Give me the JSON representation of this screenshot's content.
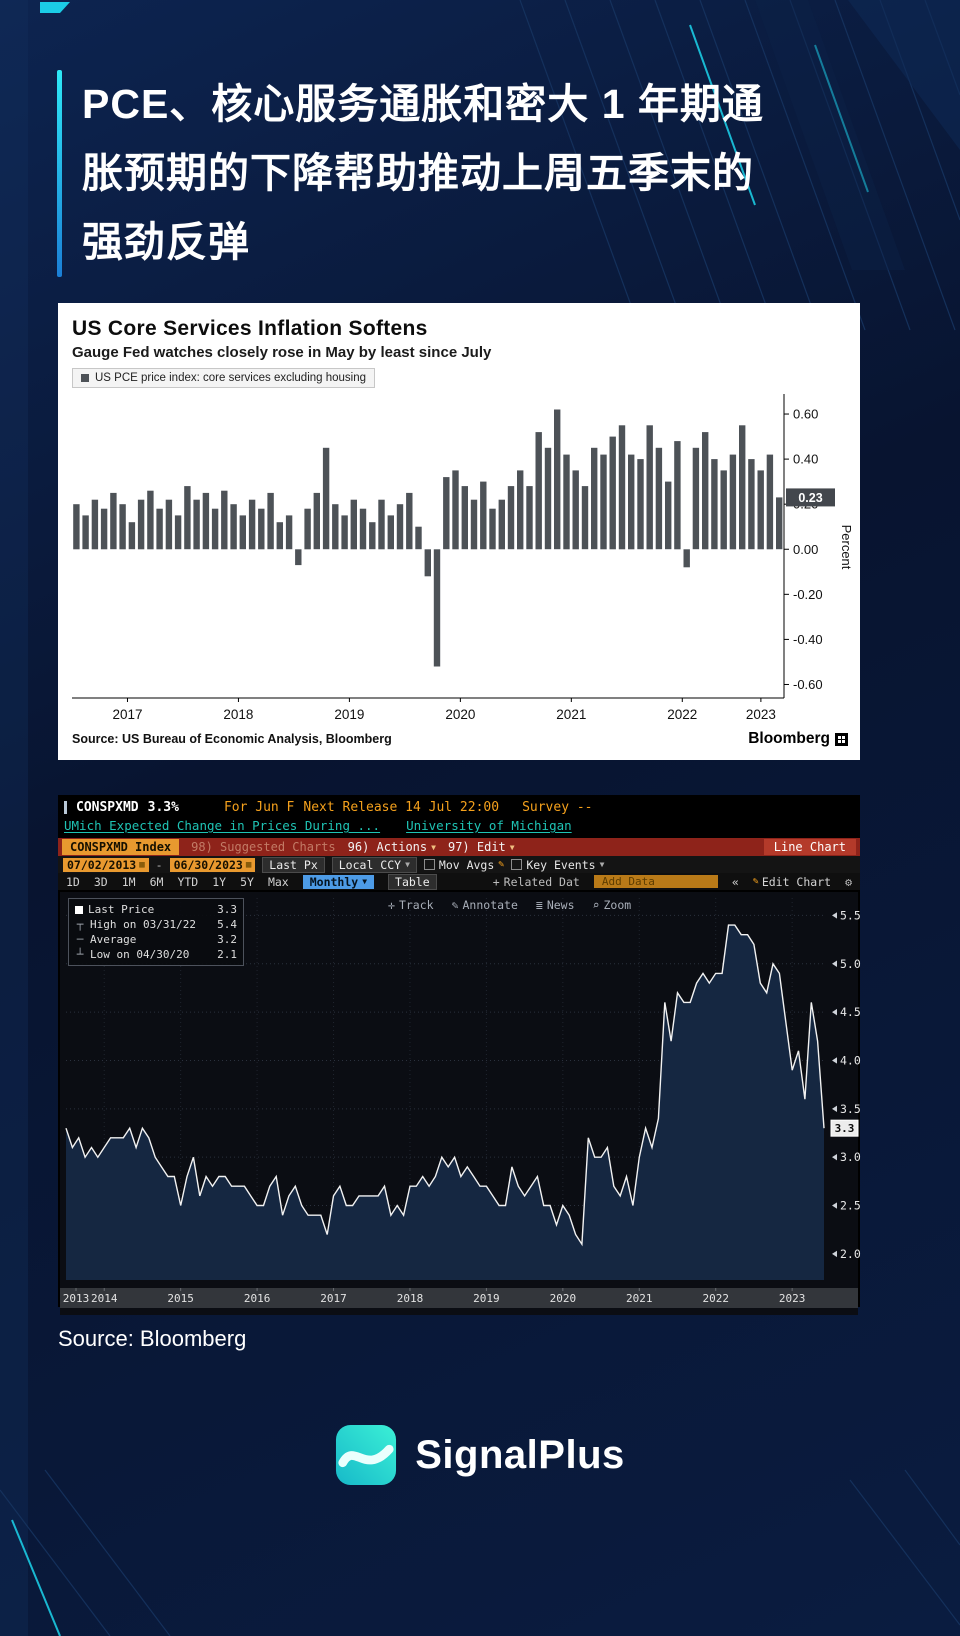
{
  "page": {
    "title_lines": [
      "PCE、核心服务通胀和密大 1 年期通",
      "胀预期的下降帮助推动上周五季末的",
      "强劲反弹"
    ],
    "source": "Source: Bloomberg",
    "brand_name": "SignalPlus"
  },
  "chart1": {
    "title": "US Core Services Inflation Softens",
    "subtitle": "Gauge Fed watches closely rose in May by least since July",
    "legend_label": "US PCE price index: core services excluding housing",
    "ylabel": "Percent",
    "source": "Source: US Bureau of Economic Analysis, Bloomberg",
    "brand": "Bloomberg"
  },
  "terminal": {
    "line1": {
      "ticker": "CONSPXMD",
      "value": "3.3%",
      "for": "For Jun F",
      "next_release": "Next Release 14 Jul 22:00",
      "survey": "Survey --"
    },
    "line2": {
      "desc": "UMich Expected Change in Prices During ...",
      "org": "University of Michigan"
    },
    "menubar": {
      "security": "CONSPXMD Index",
      "suggested": "98) Suggested Charts",
      "actions": "96) Actions",
      "edit": "97) Edit",
      "chart_type": "Line Chart"
    },
    "controls": {
      "date_from": "07/02/2013",
      "date_to": "06/30/2023",
      "last_px": "Last Px",
      "ccy": "Local CCY",
      "mov_avgs": "Mov Avgs",
      "key_events": "Key Events"
    },
    "ranges": [
      "1D",
      "3D",
      "1M",
      "6M",
      "YTD",
      "1Y",
      "5Y",
      "Max"
    ],
    "period": "Monthly",
    "table_label": "Table",
    "related": "Related Dat",
    "add_data": "Add Data",
    "edit_chart": "Edit Chart",
    "tools": {
      "track": "Track",
      "annotate": "Annotate",
      "news": "News",
      "zoom": "Zoom"
    },
    "legend": {
      "last_label": "Last Price",
      "last_val": "3.3",
      "high_label": "High on 03/31/22",
      "high_val": "5.4",
      "avg_label": "Average",
      "avg_val": "3.2",
      "low_label": "Low on 04/30/20",
      "low_val": "2.1"
    }
  },
  "icons": {
    "calendar": "▦",
    "dropdown": "▼",
    "pencil": "✎",
    "gear": "⚙",
    "collapse": "«",
    "plus": "+",
    "track": "✛",
    "annotate": "✎",
    "news": "≣",
    "zoom": "⌕",
    "separator": "-",
    "marker_high": "┬",
    "marker_avg": "─",
    "marker_low": "┴"
  },
  "chart_data": [
    {
      "type": "bar",
      "title": "US Core Services Inflation Softens",
      "subtitle": "Gauge Fed watches closely rose in May by least since July",
      "series_name": "US PCE price index: core services excluding housing",
      "start": "2017-01",
      "freq": "monthly",
      "ylabel": "Percent",
      "ylim": [
        -0.66,
        0.68
      ],
      "yticks": [
        0.6,
        0.4,
        0.2,
        0.0,
        -0.2,
        -0.4,
        -0.6
      ],
      "year_labels": [
        "2017",
        "2018",
        "2019",
        "2020",
        "2021",
        "2022",
        "2023"
      ],
      "bar_color": "#4d5257",
      "last_value": 0.23,
      "values": [
        0.2,
        0.15,
        0.22,
        0.18,
        0.25,
        0.2,
        0.12,
        0.22,
        0.26,
        0.18,
        0.22,
        0.15,
        0.28,
        0.22,
        0.25,
        0.18,
        0.26,
        0.2,
        0.15,
        0.22,
        0.18,
        0.25,
        0.12,
        0.15,
        -0.07,
        0.18,
        0.25,
        0.45,
        0.2,
        0.15,
        0.22,
        0.18,
        0.12,
        0.22,
        0.15,
        0.2,
        0.25,
        0.1,
        -0.12,
        -0.52,
        0.32,
        0.35,
        0.28,
        0.22,
        0.3,
        0.18,
        0.22,
        0.28,
        0.35,
        0.28,
        0.52,
        0.45,
        0.62,
        0.42,
        0.35,
        0.28,
        0.45,
        0.42,
        0.5,
        0.55,
        0.42,
        0.4,
        0.55,
        0.45,
        0.3,
        0.48,
        -0.08,
        0.45,
        0.52,
        0.4,
        0.35,
        0.42,
        0.55,
        0.4,
        0.35,
        0.42,
        0.23
      ]
    },
    {
      "type": "line",
      "title": "UMich Expected Change in Prices During ... (CONSPXMD Index)",
      "start": "2013-07",
      "freq": "monthly",
      "ylim": [
        1.73,
        5.68
      ],
      "yticks": [
        5.5,
        5.0,
        4.5,
        4.0,
        3.5,
        3.0,
        2.5,
        2.0
      ],
      "year_labels": [
        "2013",
        "2014",
        "2015",
        "2016",
        "2017",
        "2018",
        "2019",
        "2020",
        "2021",
        "2022",
        "2023"
      ],
      "line_color": "#f2f2f2",
      "fill_color": "#152741",
      "last_value": 3.3,
      "average": 3.2,
      "high": {
        "date": "03/31/22",
        "value": 5.4
      },
      "low": {
        "date": "04/30/20",
        "value": 2.1
      },
      "values": [
        3.3,
        3.1,
        3.2,
        3.0,
        3.1,
        3.0,
        3.1,
        3.2,
        3.2,
        3.2,
        3.3,
        3.1,
        3.3,
        3.2,
        3.0,
        2.9,
        2.8,
        2.8,
        2.5,
        2.8,
        3.0,
        2.6,
        2.8,
        2.7,
        2.8,
        2.8,
        2.7,
        2.7,
        2.7,
        2.6,
        2.5,
        2.5,
        2.7,
        2.8,
        2.4,
        2.6,
        2.7,
        2.5,
        2.4,
        2.4,
        2.4,
        2.2,
        2.6,
        2.7,
        2.5,
        2.5,
        2.6,
        2.6,
        2.6,
        2.6,
        2.7,
        2.4,
        2.5,
        2.4,
        2.7,
        2.7,
        2.8,
        2.7,
        2.8,
        3.0,
        2.9,
        3.0,
        2.8,
        2.9,
        2.8,
        2.7,
        2.7,
        2.6,
        2.5,
        2.5,
        2.9,
        2.7,
        2.6,
        2.7,
        2.8,
        2.5,
        2.5,
        2.3,
        2.5,
        2.4,
        2.2,
        2.1,
        3.2,
        3.0,
        3.0,
        3.1,
        2.7,
        2.6,
        2.8,
        2.5,
        3.0,
        3.3,
        3.1,
        3.4,
        4.6,
        4.2,
        4.7,
        4.6,
        4.6,
        4.8,
        4.9,
        4.8,
        4.9,
        4.9,
        5.4,
        5.4,
        5.3,
        5.3,
        5.2,
        4.8,
        4.7,
        5.0,
        4.9,
        4.4,
        3.9,
        4.1,
        3.6,
        4.6,
        4.2,
        3.3
      ]
    }
  ]
}
